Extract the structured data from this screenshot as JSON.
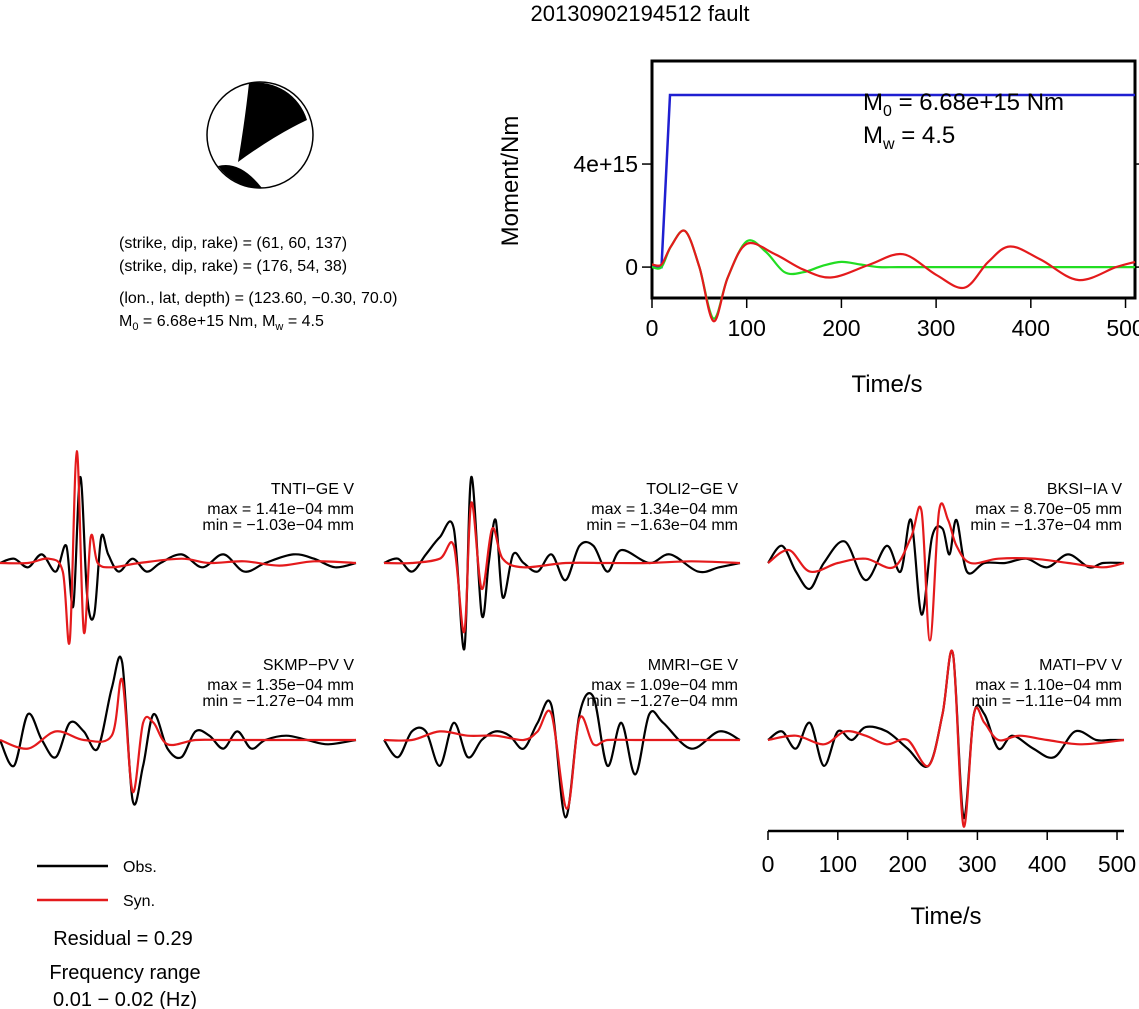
{
  "title": "20130902194512 fault",
  "mechanism": {
    "line1": "(strike, dip, rake) = (61, 60, 137)",
    "line2": "(strike, dip, rake) = (176, 54, 38)",
    "line3": "(lon., lat, depth) = (123.60, −0.30, 70.0)",
    "m0_symbol": "M",
    "m0_sub": "0",
    "m0_value": " = 6.68e+15 Nm, M",
    "mw_sub": "w",
    "mw_value": " = 4.5"
  },
  "colors": {
    "observed": "#000000",
    "synthetic": "#e41a1c",
    "cumulative_moment": "#1f1fd1",
    "moment_rate": "#22dd22"
  },
  "legend": {
    "obs": "Obs.",
    "syn": "Syn."
  },
  "residual": "Residual = 0.29",
  "frequency_label": "Frequency range",
  "frequency_value": "0.01 − 0.02 (Hz)",
  "chart_data": [
    {
      "type": "line",
      "name": "moment-function",
      "xlabel": "Time/s",
      "ylabel": "Moment/Nm",
      "xlim": [
        0,
        510
      ],
      "ylim": [
        -1200000000000000.0,
        8000000000000000.0
      ],
      "xticks": [
        0,
        100,
        200,
        300,
        400,
        500
      ],
      "xtick_labels": [
        "0",
        "100",
        "200",
        "300",
        "400",
        "500"
      ],
      "yticks": [
        0,
        4000000000000000.0
      ],
      "ytick_labels": [
        "0",
        "4e+15"
      ],
      "annotation_m0": {
        "symbol": "M",
        "sub": "0",
        "value": " = 6.68e+15 Nm"
      },
      "annotation_mw": {
        "symbol": "M",
        "sub": "w",
        "value": " = 4.5"
      },
      "series": [
        {
          "key": "cumulative",
          "color": "#1f1fd1",
          "x": [
            0,
            10,
            19,
            21,
            510
          ],
          "y": [
            0.0,
            0.0,
            6680000000000000.0,
            6680000000000000.0,
            6680000000000000.0
          ]
        },
        {
          "key": "rate",
          "color": "#22dd22",
          "x": [
            0,
            10,
            20,
            35,
            50,
            65,
            80,
            100,
            120,
            140,
            160,
            180,
            200,
            220,
            240,
            260,
            300,
            400,
            510
          ],
          "y": [
            0.0,
            0.0,
            800000000000000.0,
            1400000000000000.0,
            0.0,
            -2000000000000000.0,
            -400000000000000.0,
            1000000000000000.0,
            600000000000000.0,
            -200000000000000.0,
            -200000000000000.0,
            50000000000000.0,
            200000000000000.0,
            100000000000000.0,
            0.0,
            0.0,
            0.0,
            0.0,
            0.0
          ]
        },
        {
          "key": "rate-fit",
          "color": "#e41a1c",
          "x": [
            0,
            10,
            20,
            35,
            50,
            65,
            80,
            100,
            130,
            160,
            190,
            230,
            265,
            300,
            330,
            355,
            378,
            410,
            450,
            490,
            510
          ],
          "y": [
            100000000000000.0,
            100000000000000.0,
            800000000000000.0,
            1400000000000000.0,
            0.0,
            -2100000000000000.0,
            -400000000000000.0,
            900000000000000.0,
            500000000000000.0,
            -100000000000000.0,
            -400000000000000.0,
            100000000000000.0,
            500000000000000.0,
            -300000000000000.0,
            -800000000000000.0,
            200000000000000.0,
            800000000000000.0,
            300000000000000.0,
            -500000000000000.0,
            0.0,
            200000000000000.0
          ]
        }
      ]
    },
    {
      "type": "line",
      "name": "waveform-fits",
      "xlabel": "Time/s",
      "xlim": [
        0,
        510
      ],
      "xticks": [
        0,
        100,
        200,
        300,
        400,
        500
      ],
      "xtick_labels": [
        "0",
        "100",
        "200",
        "300",
        "400",
        "500"
      ],
      "panels": [
        {
          "station": "TNTI−GE V",
          "max": "max = 1.41e−04 mm",
          "min": "min = −1.03e−04 mm",
          "obs": {
            "t": [
              0,
              20,
              40,
              60,
              80,
              95,
              105,
              115,
              125,
              135,
              145,
              155,
              170,
              190,
              210,
              230,
              260,
              290,
              320,
              350,
              380,
              420,
              450,
              480,
              510
            ],
            "v": [
              0,
              0.05,
              -0.05,
              0.1,
              -0.1,
              0.2,
              -0.5,
              1.0,
              -0.4,
              -0.6,
              0.3,
              0.1,
              -0.1,
              0.05,
              -0.1,
              0.0,
              0.1,
              -0.05,
              0.1,
              -0.1,
              0.0,
              0.1,
              0.05,
              -0.05,
              0.0
            ]
          },
          "syn": {
            "t": [
              0,
              40,
              70,
              90,
              100,
              110,
              120,
              130,
              140,
              160,
              200,
              260,
              300,
              350,
              400,
              450,
              510
            ],
            "v": [
              0,
              0.0,
              0.05,
              -0.1,
              -0.9,
              1.3,
              -0.8,
              0.3,
              0.0,
              -0.05,
              0.0,
              0.05,
              0.0,
              0.02,
              -0.03,
              0.02,
              0.0
            ]
          }
        },
        {
          "station": "TOLI2−GE V",
          "max": "max = 1.34e−04 mm",
          "min": "min = −1.63e−04 mm",
          "obs": {
            "t": [
              0,
              20,
              40,
              60,
              80,
              100,
              115,
              125,
              140,
              150,
              160,
              170,
              185,
              200,
              220,
              240,
              260,
              280,
              300,
              320,
              340,
              380,
              410,
              450,
              480,
              510
            ],
            "v": [
              0,
              0.05,
              -0.1,
              0.1,
              0.3,
              0.4,
              -1.0,
              1.0,
              -0.6,
              0.0,
              0.5,
              -0.4,
              0.1,
              0.0,
              -0.1,
              0.1,
              -0.2,
              0.2,
              0.2,
              -0.1,
              0.15,
              0.0,
              0.1,
              -0.1,
              -0.05,
              0.0
            ]
          },
          "syn": {
            "t": [
              0,
              40,
              80,
              100,
              115,
              125,
              140,
              155,
              170,
              200,
              260,
              320,
              380,
              440,
              510
            ],
            "v": [
              0,
              0.0,
              0.05,
              0.2,
              -0.8,
              0.7,
              -0.3,
              0.4,
              0.05,
              -0.05,
              0.0,
              0.0,
              0.0,
              0.02,
              0.0
            ]
          }
        },
        {
          "station": "BKSI−IA V",
          "max": "max = 8.70e−05 mm",
          "min": "min = −1.37e−04 mm",
          "obs": {
            "t": [
              0,
              20,
              40,
              60,
              80,
              110,
              140,
              170,
              190,
              205,
              220,
              235,
              250,
              260,
              270,
              285,
              310,
              340,
              370,
              400,
              430,
              460,
              480,
              510
            ],
            "v": [
              0,
              0.2,
              -0.1,
              -0.3,
              0.0,
              0.25,
              -0.2,
              0.2,
              -0.1,
              0.5,
              -0.6,
              0.3,
              0.4,
              0.1,
              0.5,
              -0.1,
              0.0,
              0.0,
              0.05,
              -0.05,
              0.1,
              -0.05,
              0.0,
              0.0
            ]
          },
          "syn": {
            "t": [
              0,
              30,
              60,
              100,
              140,
              180,
              205,
              220,
              232,
              245,
              258,
              270,
              290,
              330,
              380,
              430,
              480,
              510
            ],
            "v": [
              0,
              0.15,
              -0.1,
              0.0,
              0.05,
              -0.05,
              0.3,
              0.6,
              -0.9,
              0.6,
              0.5,
              0.2,
              0.0,
              0.05,
              0.05,
              0.0,
              -0.05,
              0.0
            ]
          }
        },
        {
          "station": "SKMP−PV V",
          "max": "max = 1.35e−04 mm",
          "min": "min = −1.27e−04 mm",
          "obs": {
            "t": [
              0,
              20,
              40,
              60,
              80,
              100,
              120,
              140,
              160,
              175,
              190,
              205,
              220,
              240,
              260,
              280,
              300,
              320,
              340,
              360,
              380,
              410,
              440,
              470,
              510
            ],
            "v": [
              0,
              -0.3,
              0.3,
              0.0,
              -0.2,
              0.2,
              0.1,
              -0.1,
              0.6,
              0.9,
              -0.7,
              -0.3,
              0.3,
              -0.1,
              -0.2,
              0.1,
              0.05,
              -0.1,
              0.1,
              -0.1,
              0.0,
              0.05,
              0.0,
              -0.05,
              0.0
            ]
          },
          "syn": {
            "t": [
              0,
              40,
              80,
              120,
              160,
              175,
              190,
              205,
              220,
              240,
              280,
              320,
              380,
              440,
              510
            ],
            "v": [
              0,
              -0.1,
              0.1,
              0.0,
              0.05,
              0.7,
              -0.6,
              0.2,
              0.2,
              -0.05,
              0.0,
              0.0,
              0.0,
              0.0,
              0.0
            ]
          }
        },
        {
          "station": "MMRI−GE V",
          "max": "max = 1.09e−04 mm",
          "min": "min = −1.27e−04 mm",
          "obs": {
            "t": [
              0,
              20,
              40,
              60,
              80,
              100,
              120,
              140,
              160,
              180,
              200,
              220,
              240,
              260,
              280,
              300,
              320,
              340,
              360,
              380,
              400,
              440,
              480,
              510
            ],
            "v": [
              0,
              -0.2,
              0.1,
              0.1,
              -0.3,
              0.2,
              -0.2,
              0.0,
              0.1,
              0.05,
              -0.1,
              0.2,
              0.4,
              -0.9,
              0.3,
              0.5,
              -0.3,
              0.2,
              -0.4,
              0.3,
              0.2,
              -0.1,
              0.1,
              0.0
            ]
          },
          "syn": {
            "t": [
              0,
              40,
              80,
              120,
              160,
              200,
              220,
              240,
              262,
              280,
              300,
              320,
              360,
              420,
              470,
              510
            ],
            "v": [
              0,
              0.0,
              0.1,
              0.05,
              0.05,
              0.0,
              0.1,
              0.3,
              -0.8,
              0.25,
              -0.05,
              0.0,
              0.0,
              0.0,
              0.0,
              0.0
            ]
          }
        },
        {
          "station": "MATI−PV V",
          "max": "max = 1.10e−04 mm",
          "min": "min = −1.11e−04 mm",
          "obs": {
            "t": [
              0,
              20,
              40,
              60,
              80,
              100,
              120,
              140,
              170,
              200,
              230,
              250,
              265,
              280,
              295,
              310,
              330,
              350,
              380,
              410,
              440,
              470,
              490,
              510
            ],
            "v": [
              0,
              0.1,
              -0.1,
              0.2,
              -0.3,
              0.1,
              0.0,
              0.15,
              0.1,
              -0.1,
              -0.3,
              0.3,
              1.0,
              -0.9,
              0.3,
              0.3,
              -0.1,
              0.05,
              -0.1,
              -0.2,
              0.1,
              0.0,
              0.0,
              0.0
            ]
          },
          "syn": {
            "t": [
              0,
              40,
              80,
              110,
              140,
              170,
              200,
              230,
              250,
              265,
              280,
              295,
              310,
              330,
              360,
              400,
              450,
              510
            ],
            "v": [
              0,
              0.05,
              -0.05,
              0.1,
              0.05,
              -0.05,
              0.0,
              -0.3,
              0.3,
              1.0,
              -1.0,
              0.3,
              0.2,
              0.0,
              0.05,
              0.0,
              -0.05,
              0.0
            ]
          }
        }
      ]
    }
  ]
}
